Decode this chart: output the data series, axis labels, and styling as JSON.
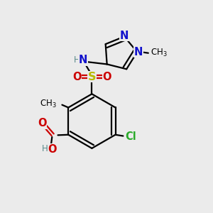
{
  "bg_color": "#ebebeb",
  "bond_color": "#000000",
  "bond_lw": 1.6,
  "atom_colors": {
    "C": "#000000",
    "H": "#5a8a8a",
    "N": "#1010cc",
    "O": "#cc0000",
    "S": "#b8b800",
    "Cl": "#2aaa2a"
  },
  "fs": 10.5,
  "fs_small": 8.5,
  "fs_sub": 7.5
}
